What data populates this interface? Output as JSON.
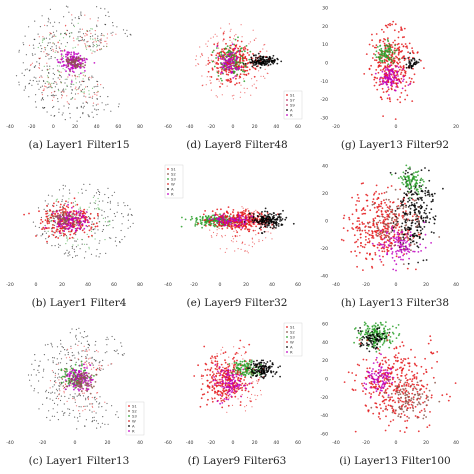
{
  "figure": {
    "background": "#ffffff"
  },
  "colors": {
    "S1": "#e41a1c",
    "S2": "#8c564b",
    "S3": "#2ca02c",
    "W": "#d62728",
    "A": "#000000",
    "R": "#c000c0",
    "dots": "#bb3366"
  },
  "chart_data": [
    {
      "id": "a",
      "caption": "(a) Layer1 Filter15",
      "type": "scatter",
      "xticks": [
        "-40",
        "-20",
        "0",
        "20",
        "40",
        "60",
        "80"
      ],
      "yticks": [],
      "legend": [],
      "legend_position": "top-left (cropped)",
      "clusters": [
        {
          "class": "A",
          "shape": "arc",
          "cx": 2,
          "cy": 2,
          "r": 70,
          "n": 320
        },
        {
          "class": "S1",
          "shape": "arc",
          "cx": 2,
          "cy": 2,
          "r": 55,
          "n": 140
        },
        {
          "class": "S3",
          "shape": "arc",
          "cx": 2,
          "cy": 2,
          "r": 45,
          "n": 90
        },
        {
          "class": "R",
          "shape": "blob",
          "cx": -2,
          "cy": 1,
          "sx": 8,
          "sy": 5,
          "n": 160
        },
        {
          "class": "S2",
          "shape": "blob",
          "cx": 0,
          "cy": 0,
          "sx": 6,
          "sy": 4,
          "n": 60
        }
      ]
    },
    {
      "id": "d",
      "caption": "(d) Layer8 Filter48",
      "type": "scatter",
      "xticks": [
        "-60",
        "-40",
        "-20",
        "0",
        "20",
        "40",
        "60"
      ],
      "yticks": [],
      "legend": [
        "S1",
        "S7",
        "S9",
        "A",
        "R"
      ],
      "legend_position": "bottom-right",
      "clusters": [
        {
          "class": "S1",
          "shape": "blob",
          "cx": 0,
          "cy": 2,
          "sx": 12,
          "sy": 10,
          "n": 260
        },
        {
          "class": "S3",
          "shape": "blob",
          "cx": -2,
          "cy": 3,
          "sx": 10,
          "sy": 8,
          "n": 120
        },
        {
          "class": "R",
          "shape": "blob",
          "cx": -5,
          "cy": 0,
          "sx": 7,
          "sy": 7,
          "n": 80
        },
        {
          "class": "A",
          "shape": "blob",
          "cx": 36,
          "cy": 2,
          "sx": 8,
          "sy": 2.5,
          "n": 150
        },
        {
          "class": "S1",
          "shape": "halo",
          "cx": 0,
          "cy": 0,
          "sx": 45,
          "sy": 40,
          "n": 140
        }
      ]
    },
    {
      "id": "g",
      "caption": "(g) Layer13 Filter92",
      "type": "scatter",
      "xticks": [
        "-20",
        "0",
        "20"
      ],
      "yticks": [
        "30",
        "20",
        "10",
        "0",
        "-10",
        "-20",
        "-30"
      ],
      "legend": [],
      "legend_position": "none",
      "clusters": [
        {
          "class": "S1",
          "shape": "blob",
          "cx": -5,
          "cy": 0,
          "sx": 14,
          "sy": 18,
          "n": 330
        },
        {
          "class": "S3",
          "shape": "blob",
          "cx": -12,
          "cy": 10,
          "sx": 6,
          "sy": 5,
          "n": 90
        },
        {
          "class": "R",
          "shape": "blob",
          "cx": -5,
          "cy": -15,
          "sx": 8,
          "sy": 6,
          "n": 90
        },
        {
          "class": "A",
          "shape": "blob",
          "cx": 20,
          "cy": 0,
          "sx": 4,
          "sy": 3,
          "n": 40
        }
      ]
    },
    {
      "id": "b",
      "caption": "(b) Layer1 Filter4",
      "type": "scatter",
      "xticks": [
        "-20",
        "0",
        "20",
        "40",
        "60",
        "80"
      ],
      "yticks": [],
      "legend": [],
      "legend_position": "top-left (cropped)",
      "clusters": [
        {
          "class": "A",
          "shape": "halo",
          "cx": 10,
          "cy": 0,
          "sx": 60,
          "sy": 40,
          "n": 200
        },
        {
          "class": "S3",
          "shape": "halo",
          "cx": 5,
          "cy": 0,
          "sx": 40,
          "sy": 30,
          "n": 80
        },
        {
          "class": "S1",
          "shape": "blob",
          "cx": -10,
          "cy": 0,
          "sx": 16,
          "sy": 8,
          "n": 260
        },
        {
          "class": "R",
          "shape": "blob",
          "cx": -8,
          "cy": 0,
          "sx": 10,
          "sy": 6,
          "n": 120
        },
        {
          "class": "S2",
          "shape": "blob",
          "cx": -12,
          "cy": 1,
          "sx": 8,
          "sy": 5,
          "n": 60
        }
      ]
    },
    {
      "id": "e",
      "caption": "(e) Layer9 Filter32",
      "type": "scatter",
      "xticks": [
        "-40",
        "-20",
        "0",
        "20",
        "40",
        "60"
      ],
      "yticks": [],
      "legend": [
        "S1",
        "S2",
        "S3",
        "W",
        "A",
        "R"
      ],
      "legend_position": "top-left",
      "clusters": [
        {
          "class": "S3",
          "shape": "blob",
          "cx": -20,
          "cy": 0,
          "sx": 14,
          "sy": 3,
          "n": 200
        },
        {
          "class": "S1",
          "shape": "blob",
          "cx": 5,
          "cy": 0,
          "sx": 18,
          "sy": 5,
          "n": 300
        },
        {
          "class": "R",
          "shape": "blob",
          "cx": 0,
          "cy": 1,
          "sx": 10,
          "sy": 3,
          "n": 80
        },
        {
          "class": "A",
          "shape": "blob",
          "cx": 42,
          "cy": 1,
          "sx": 9,
          "sy": 4,
          "n": 180
        },
        {
          "class": "S1",
          "shape": "halo",
          "cx": 10,
          "cy": -10,
          "sx": 40,
          "sy": 25,
          "n": 100
        }
      ]
    },
    {
      "id": "h",
      "caption": "(h) Layer13 Filter38",
      "type": "scatter",
      "xticks": [
        "-40",
        "-20",
        "0",
        "20",
        "40"
      ],
      "yticks": [
        "40",
        "20",
        "0",
        "-20",
        "-40"
      ],
      "legend": [],
      "legend_position": "none",
      "clusters": [
        {
          "class": "S1",
          "shape": "blob",
          "cx": -20,
          "cy": -5,
          "sx": 22,
          "sy": 18,
          "n": 360
        },
        {
          "class": "A",
          "shape": "blob",
          "cx": 25,
          "cy": 10,
          "sx": 12,
          "sy": 20,
          "n": 240
        },
        {
          "class": "S3",
          "shape": "blob",
          "cx": 20,
          "cy": 40,
          "sx": 8,
          "sy": 6,
          "n": 90
        },
        {
          "class": "R",
          "shape": "blob",
          "cx": 5,
          "cy": -25,
          "sx": 14,
          "sy": 8,
          "n": 110
        },
        {
          "class": "S2",
          "shape": "blob",
          "cx": 0,
          "cy": 0,
          "sx": 18,
          "sy": 14,
          "n": 100
        }
      ]
    },
    {
      "id": "c",
      "caption": "(c) Layer1 Filter13",
      "type": "scatter",
      "xticks": [
        "-40",
        "-20",
        "0",
        "20",
        "40"
      ],
      "yticks": [],
      "legend": [
        "S1",
        "S2",
        "S3",
        "W",
        "A",
        "R"
      ],
      "legend_position": "bottom-right",
      "clusters": [
        {
          "class": "A",
          "shape": "arc",
          "cx": 10,
          "cy": 0,
          "r": 60,
          "n": 260
        },
        {
          "class": "S1",
          "shape": "arc",
          "cx": 10,
          "cy": 0,
          "r": 40,
          "n": 100
        },
        {
          "class": "S3",
          "shape": "blob",
          "cx": 2,
          "cy": 2,
          "sx": 8,
          "sy": 6,
          "n": 90
        },
        {
          "class": "R",
          "shape": "blob",
          "cx": 5,
          "cy": 0,
          "sx": 8,
          "sy": 6,
          "n": 110
        },
        {
          "class": "S2",
          "shape": "blob",
          "cx": 8,
          "cy": -2,
          "sx": 7,
          "sy": 5,
          "n": 80
        }
      ]
    },
    {
      "id": "f",
      "caption": "(f) Layer9 Filter63",
      "type": "scatter",
      "xticks": [
        "-60",
        "-40",
        "-20",
        "0",
        "20",
        "40",
        "60"
      ],
      "yticks": [],
      "legend": [
        "S1",
        "S2",
        "S3",
        "W",
        "A",
        "R"
      ],
      "legend_position": "top-right",
      "clusters": [
        {
          "class": "S1",
          "shape": "blob",
          "cx": -8,
          "cy": 0,
          "sx": 14,
          "sy": 12,
          "n": 300
        },
        {
          "class": "R",
          "shape": "blob",
          "cx": -5,
          "cy": -5,
          "sx": 9,
          "sy": 8,
          "n": 100
        },
        {
          "class": "S3",
          "shape": "blob",
          "cx": 18,
          "cy": 10,
          "sx": 8,
          "sy": 4,
          "n": 110
        },
        {
          "class": "A",
          "shape": "blob",
          "cx": 35,
          "cy": 10,
          "sx": 7,
          "sy": 4,
          "n": 130
        },
        {
          "class": "S1",
          "shape": "halo",
          "cx": 0,
          "cy": 0,
          "sx": 40,
          "sy": 35,
          "n": 100
        }
      ]
    },
    {
      "id": "i",
      "caption": "(i) Layer13 Filter100",
      "type": "scatter",
      "xticks": [
        "-40",
        "-20",
        "0",
        "20",
        "40"
      ],
      "yticks": [
        "60",
        "40",
        "20",
        "0",
        "-20",
        "-40",
        "-60"
      ],
      "legend": [],
      "legend_position": "none",
      "clusters": [
        {
          "class": "S3",
          "shape": "blob",
          "cx": -25,
          "cy": 45,
          "sx": 12,
          "sy": 6,
          "n": 180
        },
        {
          "class": "A",
          "shape": "blob",
          "cx": -30,
          "cy": 40,
          "sx": 8,
          "sy": 5,
          "n": 80
        },
        {
          "class": "S1",
          "shape": "blob",
          "cx": 0,
          "cy": -5,
          "sx": 25,
          "sy": 20,
          "n": 380
        },
        {
          "class": "R",
          "shape": "blob",
          "cx": -20,
          "cy": 0,
          "sx": 10,
          "sy": 8,
          "n": 90
        },
        {
          "class": "S2",
          "shape": "blob",
          "cx": 15,
          "cy": -20,
          "sx": 14,
          "sy": 10,
          "n": 100
        }
      ]
    }
  ]
}
